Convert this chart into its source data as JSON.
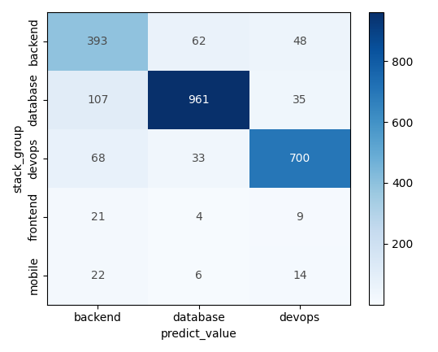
{
  "matrix": [
    [
      393,
      62,
      48
    ],
    [
      107,
      961,
      35
    ],
    [
      68,
      33,
      700
    ],
    [
      21,
      4,
      9
    ],
    [
      22,
      6,
      14
    ]
  ],
  "row_labels": [
    "backend",
    "database",
    "devops",
    "frontend",
    "mobile"
  ],
  "col_labels": [
    "backend",
    "database",
    "devops"
  ],
  "xlabel": "predict_value",
  "ylabel": "stack_group",
  "cmap": "Blues",
  "vmin": 0,
  "vmax": 961,
  "colorbar_ticks": [
    200,
    400,
    600,
    800
  ],
  "figsize": [
    5.39,
    4.33
  ],
  "dpi": 100,
  "annotation_fontsize": 10,
  "label_fontsize": 10,
  "tick_fontsize": 10
}
